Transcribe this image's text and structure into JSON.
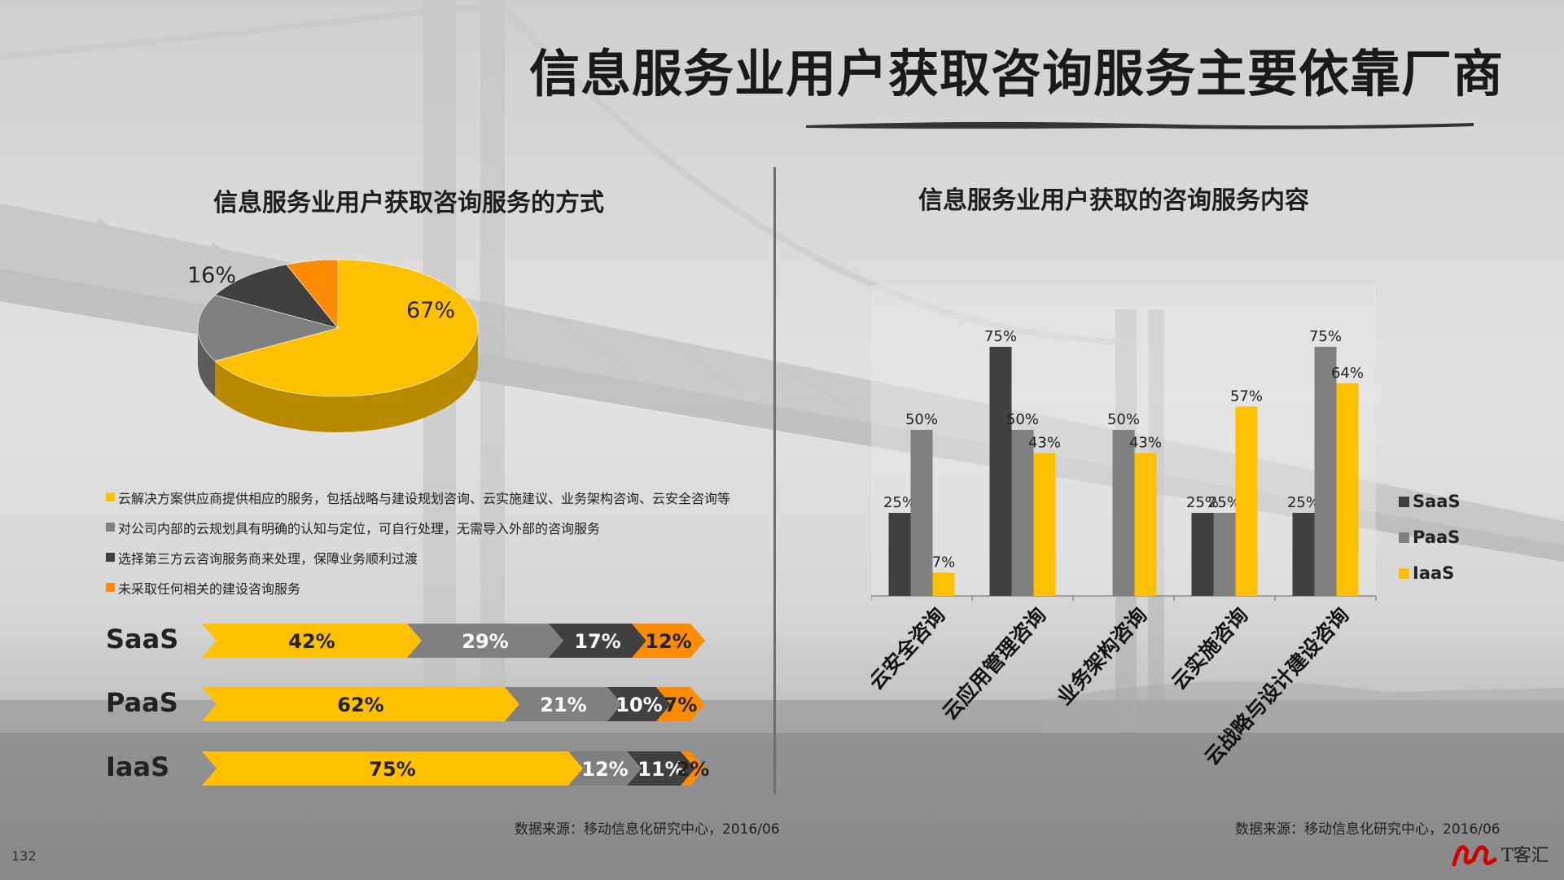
{
  "title": "信息服务业用户获取咨询服务主要依靠厂商",
  "page_number": "132",
  "logo_text": "T客汇",
  "colors": {
    "yellow": "#FFC000",
    "gray": "#808080",
    "dark": "#404040",
    "orange": "#FF8C00"
  },
  "chart_data": [
    {
      "type": "pie",
      "title": "信息服务业用户获取咨询服务的方式",
      "slices": [
        {
          "label": "云解决方案供应商提供相应的服务，包括战略与建设规划咨询、云实施建议、业务架构咨询、云安全咨询等",
          "value": 67,
          "display": "67%",
          "color": "#FFC000"
        },
        {
          "label": "对公司内部的云规划具有明确的认知与定位，可自行处理，无需导入外部的咨询服务",
          "value": 16,
          "display": "16%",
          "color": "#808080"
        },
        {
          "label": "选择第三方云咨询服务商来处理，保障业务顺利过渡",
          "value": 11,
          "display": "11%",
          "color": "#404040"
        },
        {
          "label": "未采取任何相关的建设咨询服务",
          "value": 6,
          "display": "6%",
          "color": "#FF8C00"
        }
      ]
    },
    {
      "type": "bar",
      "orientation": "horizontal-stacked",
      "categories": [
        "SaaS",
        "PaaS",
        "IaaS"
      ],
      "series": [
        {
          "values": [
            42,
            62,
            75
          ],
          "labels": [
            "42%",
            "62%",
            "75%"
          ],
          "color": "#FFC000"
        },
        {
          "values": [
            29,
            21,
            12
          ],
          "labels": [
            "29%",
            "21%",
            "12%"
          ],
          "color": "#808080"
        },
        {
          "values": [
            17,
            10,
            11
          ],
          "labels": [
            "17%",
            "10%",
            "11%"
          ],
          "color": "#404040"
        },
        {
          "values": [
            12,
            7,
            2
          ],
          "labels": [
            "12%",
            "7%",
            "2%"
          ],
          "color": "#FF8C00"
        }
      ]
    },
    {
      "type": "bar",
      "title": "信息服务业用户获取的咨询服务内容",
      "categories": [
        "云安全咨询",
        "云应用管理咨询",
        "业务架构咨询",
        "云实施咨询",
        "云战略与设计建设咨询"
      ],
      "series": [
        {
          "name": "SaaS",
          "values": [
            25,
            75,
            null,
            25,
            25
          ],
          "labels": [
            "25%",
            "75%",
            "",
            "25%",
            "25%"
          ],
          "color": "#404040"
        },
        {
          "name": "PaaS",
          "values": [
            50,
            50,
            50,
            25,
            75
          ],
          "labels": [
            "50%",
            "50%",
            "50%",
            "25%",
            "75%"
          ],
          "color": "#808080"
        },
        {
          "name": "IaaS",
          "values": [
            7,
            43,
            43,
            57,
            64
          ],
          "labels": [
            "7%",
            "43%",
            "43%",
            "57%",
            "64%"
          ],
          "color": "#FFC000"
        }
      ],
      "ylim": [
        0,
        100
      ],
      "grid": false,
      "legend_position": "right"
    }
  ],
  "source_left": "数据来源：移动信息化研究中心，2016/06",
  "source_right": "数据来源：移动信息化研究中心，2016/06"
}
